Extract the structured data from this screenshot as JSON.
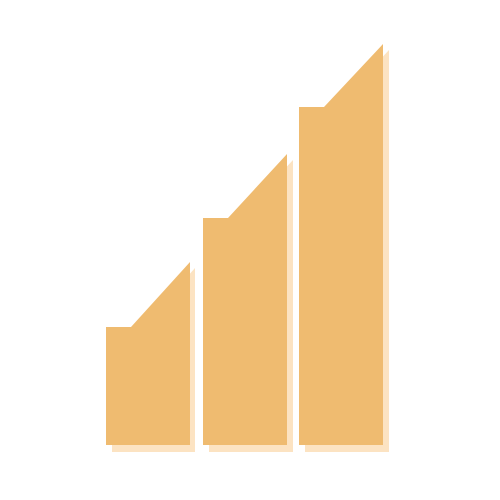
{
  "icon": {
    "name": "signal-bars-icon",
    "bar_count": 3,
    "colors": {
      "bar": "#EFBB70",
      "shadow": "#FCE3C2",
      "background": "#FFFFFF"
    }
  }
}
